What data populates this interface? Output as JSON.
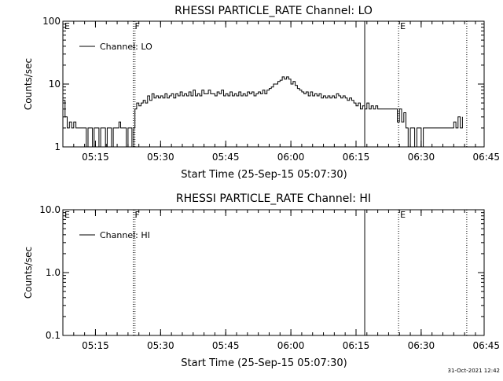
{
  "chart_data": [
    {
      "type": "line",
      "title": "RHESSI PARTICLE_RATE Channel: LO",
      "ylabel": "Counts/sec",
      "xlabel": "Start Time (25-Sep-15 05:07:30)",
      "yscale": "log",
      "ylim": [
        1,
        100
      ],
      "y_ticks": [
        "1",
        "10",
        "100"
      ],
      "xlim_minutes": [
        0,
        97
      ],
      "x_ticks": [
        {
          "label": "05:15",
          "minute": 7.5
        },
        {
          "label": "05:30",
          "minute": 22.5
        },
        {
          "label": "05:45",
          "minute": 37.5
        },
        {
          "label": "06:00",
          "minute": 52.5
        },
        {
          "label": "06:15",
          "minute": 67.5
        },
        {
          "label": "06:30",
          "minute": 82.5
        },
        {
          "label": "06:45",
          "minute": 97.5
        }
      ],
      "legend": {
        "label": "Channel: LO",
        "position": "top-left"
      },
      "markers": [
        {
          "label": "E",
          "minute": 0,
          "style": "dotted"
        },
        {
          "label": "F",
          "minute": 16.2,
          "style": "dotted"
        },
        {
          "label": "",
          "minute": 16.6,
          "style": "dotted"
        },
        {
          "label": "",
          "minute": 69.5,
          "style": "solid"
        },
        {
          "label": "E",
          "minute": 77.3,
          "style": "dotted"
        },
        {
          "label": "",
          "minute": 93,
          "style": "dotted"
        }
      ],
      "series": [
        {
          "name": "Channel: LO",
          "points": [
            [
              0.0,
              5.5
            ],
            [
              0.5,
              3.0
            ],
            [
              1.0,
              2.0
            ],
            [
              1.5,
              2.5
            ],
            [
              2.0,
              2.0
            ],
            [
              2.5,
              2.5
            ],
            [
              3.0,
              2.0
            ],
            [
              5.0,
              2.0
            ],
            [
              5.4,
              1.0
            ],
            [
              5.8,
              2.0
            ],
            [
              6.4,
              2.0
            ],
            [
              6.8,
              1.0
            ],
            [
              7.2,
              2.0
            ],
            [
              8.0,
              2.0
            ],
            [
              8.3,
              1.0
            ],
            [
              8.7,
              2.0
            ],
            [
              9.4,
              2.0
            ],
            [
              9.8,
              1.0
            ],
            [
              10.2,
              2.0
            ],
            [
              10.8,
              2.0
            ],
            [
              11.2,
              1.0
            ],
            [
              11.6,
              2.0
            ],
            [
              12.5,
              2.0
            ],
            [
              12.9,
              2.5
            ],
            [
              13.3,
              2.0
            ],
            [
              14.2,
              2.0
            ],
            [
              14.6,
              1.0
            ],
            [
              15.0,
              2.0
            ],
            [
              15.5,
              2.0
            ],
            [
              15.9,
              1.0
            ],
            [
              16.3,
              2.0
            ],
            [
              16.6,
              4.0
            ],
            [
              17.0,
              5.0
            ],
            [
              17.5,
              4.5
            ],
            [
              18.0,
              5.0
            ],
            [
              18.5,
              5.5
            ],
            [
              19.0,
              5.0
            ],
            [
              19.5,
              6.5
            ],
            [
              20.0,
              5.5
            ],
            [
              20.5,
              7.0
            ],
            [
              21.0,
              6.0
            ],
            [
              21.5,
              6.5
            ],
            [
              22.0,
              6.0
            ],
            [
              22.5,
              6.5
            ],
            [
              23.0,
              6.0
            ],
            [
              23.5,
              7.0
            ],
            [
              24.0,
              6.0
            ],
            [
              24.5,
              6.5
            ],
            [
              25.0,
              7.0
            ],
            [
              25.5,
              6.0
            ],
            [
              26.0,
              7.0
            ],
            [
              26.5,
              6.5
            ],
            [
              27.0,
              7.5
            ],
            [
              27.5,
              6.5
            ],
            [
              28.0,
              7.0
            ],
            [
              28.5,
              6.5
            ],
            [
              29.0,
              7.5
            ],
            [
              29.5,
              6.5
            ],
            [
              30.0,
              8.0
            ],
            [
              30.5,
              6.5
            ],
            [
              31.0,
              7.0
            ],
            [
              31.5,
              6.5
            ],
            [
              32.0,
              8.0
            ],
            [
              32.5,
              7.0
            ],
            [
              33.0,
              7.0
            ],
            [
              33.5,
              8.0
            ],
            [
              34.0,
              7.0
            ],
            [
              34.5,
              7.0
            ],
            [
              35.0,
              6.5
            ],
            [
              35.5,
              7.5
            ],
            [
              36.0,
              7.0
            ],
            [
              36.5,
              8.0
            ],
            [
              37.0,
              6.5
            ],
            [
              37.5,
              7.0
            ],
            [
              38.0,
              6.5
            ],
            [
              38.5,
              7.5
            ],
            [
              39.0,
              6.5
            ],
            [
              39.5,
              7.0
            ],
            [
              40.0,
              6.5
            ],
            [
              40.5,
              7.5
            ],
            [
              41.0,
              6.5
            ],
            [
              41.5,
              7.0
            ],
            [
              42.0,
              6.5
            ],
            [
              42.5,
              7.5
            ],
            [
              43.0,
              7.0
            ],
            [
              43.5,
              7.5
            ],
            [
              44.0,
              6.5
            ],
            [
              44.5,
              7.0
            ],
            [
              45.0,
              7.5
            ],
            [
              45.5,
              7.0
            ],
            [
              46.0,
              8.0
            ],
            [
              46.5,
              7.0
            ],
            [
              47.0,
              8.0
            ],
            [
              47.5,
              8.5
            ],
            [
              48.0,
              9.0
            ],
            [
              48.5,
              10.0
            ],
            [
              49.0,
              10.0
            ],
            [
              49.5,
              11.0
            ],
            [
              50.0,
              11.5
            ],
            [
              50.5,
              13.0
            ],
            [
              51.0,
              12.0
            ],
            [
              51.5,
              13.0
            ],
            [
              52.0,
              12.0
            ],
            [
              52.5,
              10.0
            ],
            [
              53.0,
              11.0
            ],
            [
              53.5,
              9.5
            ],
            [
              54.0,
              8.5
            ],
            [
              54.5,
              8.0
            ],
            [
              55.0,
              7.5
            ],
            [
              55.5,
              7.0
            ],
            [
              56.0,
              7.5
            ],
            [
              56.5,
              6.5
            ],
            [
              57.0,
              7.5
            ],
            [
              57.5,
              6.5
            ],
            [
              58.0,
              7.0
            ],
            [
              58.5,
              6.5
            ],
            [
              59.0,
              7.0
            ],
            [
              59.5,
              6.0
            ],
            [
              60.0,
              6.5
            ],
            [
              60.5,
              6.0
            ],
            [
              61.0,
              6.5
            ],
            [
              61.5,
              6.0
            ],
            [
              62.0,
              6.5
            ],
            [
              62.5,
              6.0
            ],
            [
              63.0,
              7.0
            ],
            [
              63.5,
              6.5
            ],
            [
              64.0,
              6.0
            ],
            [
              64.5,
              6.5
            ],
            [
              65.0,
              6.0
            ],
            [
              65.5,
              5.5
            ],
            [
              66.0,
              6.0
            ],
            [
              66.5,
              5.5
            ],
            [
              67.0,
              5.0
            ],
            [
              67.5,
              4.5
            ],
            [
              68.0,
              5.0
            ],
            [
              68.5,
              4.0
            ],
            [
              69.0,
              4.5
            ],
            [
              69.5,
              4.0
            ],
            [
              70.0,
              5.0
            ],
            [
              70.5,
              4.0
            ],
            [
              71.0,
              4.5
            ],
            [
              71.5,
              4.0
            ],
            [
              72.0,
              4.5
            ],
            [
              72.5,
              4.0
            ],
            [
              73.0,
              4.0
            ],
            [
              76.5,
              4.0
            ],
            [
              77.0,
              2.5
            ],
            [
              77.5,
              4.0
            ],
            [
              78.0,
              2.5
            ],
            [
              78.5,
              3.5
            ],
            [
              79.0,
              2.0
            ],
            [
              79.5,
              1.0
            ],
            [
              80.0,
              2.0
            ],
            [
              80.5,
              2.0
            ],
            [
              81.0,
              1.0
            ],
            [
              81.5,
              2.0
            ],
            [
              82.0,
              2.0
            ],
            [
              82.5,
              1.0
            ],
            [
              83.0,
              2.0
            ],
            [
              83.5,
              2.0
            ],
            [
              89.5,
              2.0
            ],
            [
              90.0,
              2.5
            ],
            [
              90.5,
              2.0
            ],
            [
              91.0,
              3.0
            ],
            [
              91.5,
              2.0
            ],
            [
              92.0,
              3.0
            ]
          ]
        }
      ]
    },
    {
      "type": "line",
      "title": "RHESSI PARTICLE_RATE Channel: HI",
      "ylabel": "Counts/sec",
      "xlabel": "Start Time (25-Sep-15 05:07:30)",
      "yscale": "log",
      "ylim": [
        0.1,
        10.0
      ],
      "y_ticks": [
        "0.1",
        "1.0",
        "10.0"
      ],
      "xlim_minutes": [
        0,
        97
      ],
      "x_ticks": [
        {
          "label": "05:15",
          "minute": 7.5
        },
        {
          "label": "05:30",
          "minute": 22.5
        },
        {
          "label": "05:45",
          "minute": 37.5
        },
        {
          "label": "06:00",
          "minute": 52.5
        },
        {
          "label": "06:15",
          "minute": 67.5
        },
        {
          "label": "06:30",
          "minute": 82.5
        },
        {
          "label": "06:45",
          "minute": 97.5
        }
      ],
      "legend": {
        "label": "Channel: HI",
        "position": "top-left"
      },
      "markers": [
        {
          "label": "E",
          "minute": 0,
          "style": "dotted"
        },
        {
          "label": "F",
          "minute": 16.2,
          "style": "dotted"
        },
        {
          "label": "",
          "minute": 16.6,
          "style": "dotted"
        },
        {
          "label": "",
          "minute": 69.5,
          "style": "solid"
        },
        {
          "label": "E",
          "minute": 77.3,
          "style": "dotted"
        },
        {
          "label": "",
          "minute": 93,
          "style": "dotted"
        }
      ],
      "series": [
        {
          "name": "Channel: HI",
          "points": []
        }
      ]
    }
  ],
  "footer": {
    "timestamp": "31-Oct-2021 12:42"
  }
}
